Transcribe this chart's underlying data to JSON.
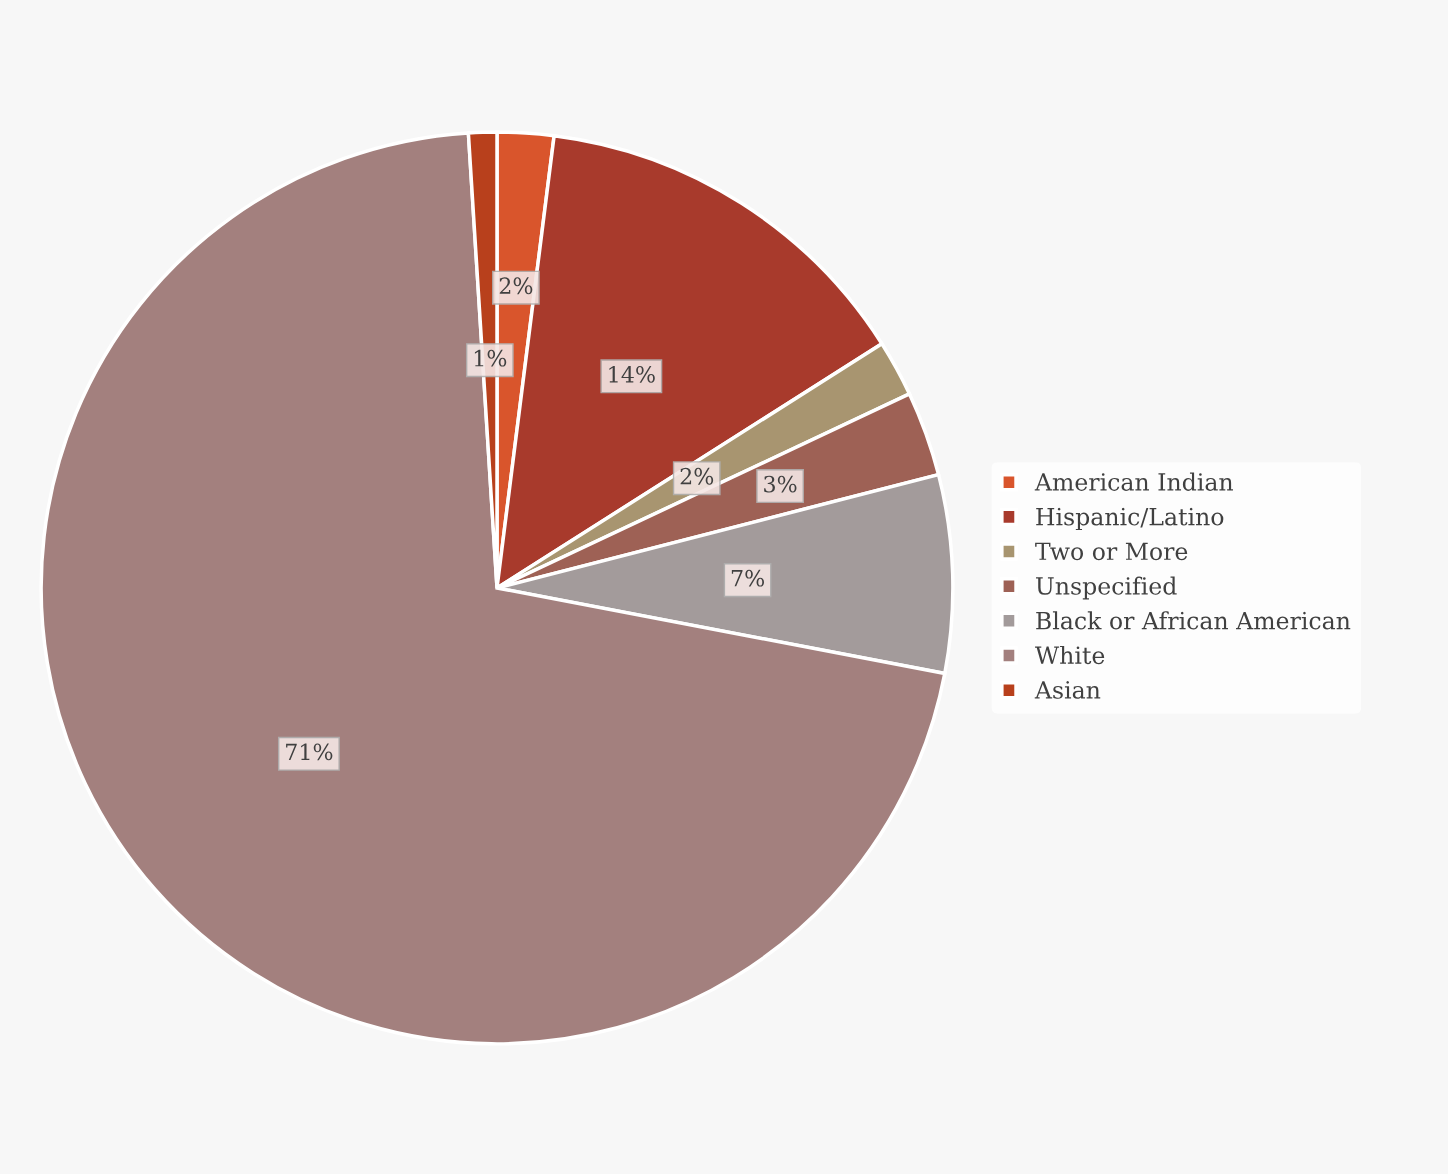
{
  "chart_data": {
    "type": "pie",
    "categories": [
      "American Indian",
      "Hispanic/Latino",
      "Two or More",
      "Unspecified",
      "Black or African American",
      "White",
      "Asian"
    ],
    "values": [
      2,
      14,
      2,
      3,
      7,
      71,
      1
    ],
    "colors": [
      "#d9552c",
      "#a83a2c",
      "#a89570",
      "#9e6155",
      "#a39b9b",
      "#a3807e",
      "#b8401c"
    ],
    "value_labels": [
      "2%",
      "14%",
      "2%",
      "3%",
      "7%",
      "71%",
      "1%"
    ],
    "legend": "right"
  }
}
